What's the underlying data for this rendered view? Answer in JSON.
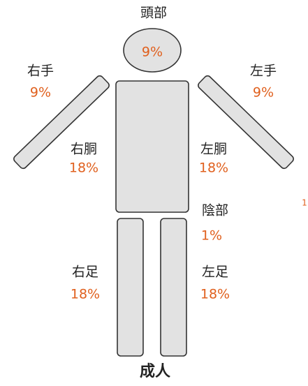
{
  "title": "成人",
  "parts": [
    {
      "label": "頭部",
      "percent": "9%"
    },
    {
      "label": "右手",
      "percent": "9%"
    },
    {
      "label": "左手",
      "percent": "9%"
    },
    {
      "label": "右胴",
      "percent": "18%"
    },
    {
      "label": "左胴",
      "percent": "18%"
    },
    {
      "label": "陰部",
      "percent": "1%"
    },
    {
      "label": "右足",
      "percent": "18%"
    },
    {
      "label": "左足",
      "percent": "18%"
    }
  ],
  "edge_text": "1"
}
